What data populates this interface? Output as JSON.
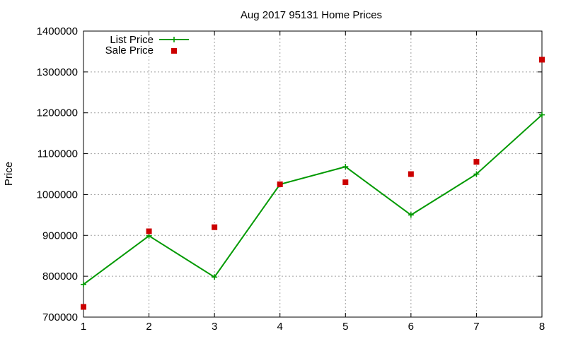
{
  "chart_data": {
    "type": "line",
    "title": "Aug 2017 95131 Home Prices",
    "xlabel": "",
    "ylabel": "Price",
    "x": [
      1,
      2,
      3,
      4,
      5,
      6,
      7,
      8
    ],
    "xlim": [
      1,
      8
    ],
    "ylim": [
      700000,
      1400000
    ],
    "xticks": [
      "1",
      "2",
      "3",
      "4",
      "5",
      "6",
      "7",
      "8"
    ],
    "yticks": [
      "700000",
      "800000",
      "900000",
      "1000000",
      "1100000",
      "1200000",
      "1300000",
      "1400000"
    ],
    "grid": true,
    "legend_position": "top-left",
    "series": [
      {
        "name": "List Price",
        "style": "line-with-plus-markers",
        "color": "#009900",
        "values": [
          780000,
          899000,
          798000,
          1025000,
          1068000,
          950000,
          1050000,
          1195000
        ]
      },
      {
        "name": "Sale Price",
        "style": "square-points",
        "color": "#cc0000",
        "values": [
          725000,
          910000,
          920000,
          1025000,
          1030000,
          1050000,
          1080000,
          1330000
        ]
      }
    ]
  }
}
